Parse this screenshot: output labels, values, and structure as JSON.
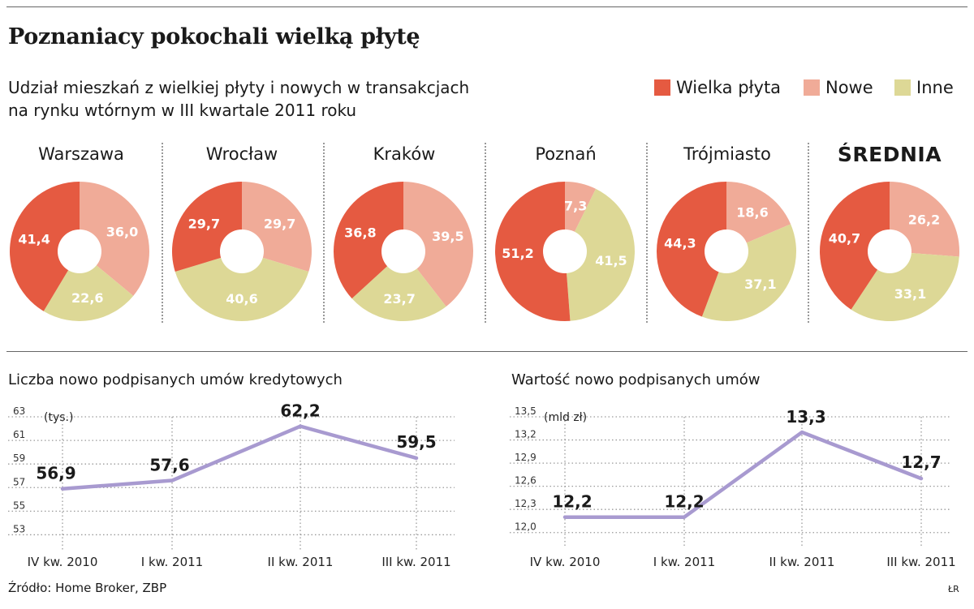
{
  "header": {
    "title": "Poznaniacy pokochali wielką płytę",
    "subtitle_line1": "Udział mieszkań z wielkiej płyty i nowych w transakcjach",
    "subtitle_line2": "na rynku wtórnym w III kwartale 2011 roku"
  },
  "legend": [
    {
      "label": "Wielka płyta",
      "color": "#e55a41"
    },
    {
      "label": "Nowe",
      "color": "#f0ab98"
    },
    {
      "label": "Inne",
      "color": "#ddd896"
    }
  ],
  "chart_data": [
    {
      "type": "pie",
      "title": "Warszawa",
      "categories": [
        "Wielka płyta",
        "Nowe",
        "Inne"
      ],
      "values": [
        41.4,
        36.0,
        22.6
      ],
      "labels": [
        "41,4",
        "36,0",
        "22,6"
      ]
    },
    {
      "type": "pie",
      "title": "Wrocław",
      "categories": [
        "Wielka płyta",
        "Nowe",
        "Inne"
      ],
      "values": [
        29.7,
        29.7,
        40.6
      ],
      "labels": [
        "29,7",
        "29,7",
        "40,6"
      ]
    },
    {
      "type": "pie",
      "title": "Kraków",
      "categories": [
        "Wielka płyta",
        "Nowe",
        "Inne"
      ],
      "values": [
        36.8,
        39.5,
        23.7
      ],
      "labels": [
        "36,8",
        "39,5",
        "23,7"
      ]
    },
    {
      "type": "pie",
      "title": "Poznań",
      "categories": [
        "Wielka płyta",
        "Nowe",
        "Inne"
      ],
      "values": [
        51.2,
        7.3,
        41.5
      ],
      "labels": [
        "51,2",
        "7,3",
        "41,5"
      ]
    },
    {
      "type": "pie",
      "title": "Trójmiasto",
      "categories": [
        "Wielka płyta",
        "Nowe",
        "Inne"
      ],
      "values": [
        44.3,
        18.6,
        37.1
      ],
      "labels": [
        "44,3",
        "18,6",
        "37,1"
      ]
    },
    {
      "type": "pie",
      "title": "ŚREDNIA",
      "categories": [
        "Wielka płyta",
        "Nowe",
        "Inne"
      ],
      "values": [
        40.7,
        26.2,
        33.1
      ],
      "labels": [
        "40,7",
        "26,2",
        "33,1"
      ]
    },
    {
      "type": "line",
      "title": "Liczba nowo podpisanych umów kredytowych",
      "unit": "(tys.)",
      "categories": [
        "IV kw. 2010",
        "I kw. 2011",
        "II kw. 2011",
        "III kw. 2011"
      ],
      "values": [
        56.9,
        57.6,
        62.2,
        59.5
      ],
      "labels": [
        "56,9",
        "57,6",
        "62,2",
        "59,5"
      ],
      "yticks": [
        53,
        55,
        57,
        59,
        61,
        63
      ],
      "ytick_labels": [
        "53",
        "55",
        "57",
        "59",
        "61",
        "63"
      ],
      "ylim": [
        52,
        63
      ],
      "grid": true
    },
    {
      "type": "line",
      "title": "Wartość nowo podpisanych umów",
      "unit": "(mld zł)",
      "categories": [
        "IV kw. 2010",
        "I kw. 2011",
        "II kw. 2011",
        "III kw. 2011"
      ],
      "values": [
        12.2,
        12.2,
        13.3,
        12.7
      ],
      "labels": [
        "12,2",
        "12,2",
        "13,3",
        "12,7"
      ],
      "yticks": [
        12.0,
        12.3,
        12.6,
        12.9,
        13.2,
        13.5
      ],
      "ytick_labels": [
        "12,0",
        "12,3",
        "12,6",
        "12,9",
        "13,2",
        "13,5"
      ],
      "ylim": [
        11.85,
        13.5
      ],
      "grid": true
    }
  ],
  "line_color": "#a89ad0",
  "footer": {
    "source": "Źródło: Home Broker, ZBP",
    "credit": "ŁR"
  }
}
